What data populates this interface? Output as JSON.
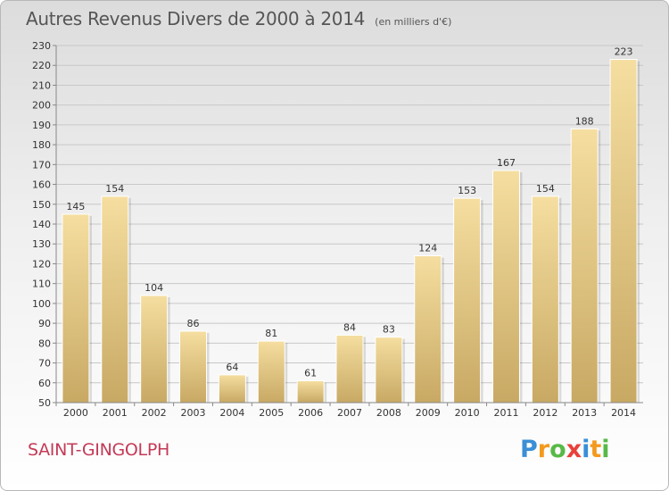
{
  "header": {
    "title": "Autres Revenus Divers de 2000 à 2014",
    "unit": "(en milliers d'€)"
  },
  "footer": {
    "commune": "SAINT-GINGOLPH",
    "logo_letters": [
      "P",
      "r",
      "o",
      "x",
      "i",
      "t",
      "i"
    ],
    "logo_colors": [
      "#3a8fd6",
      "#f39a1e",
      "#58b947",
      "#e8413a",
      "#3a8fd6",
      "#f39a1e",
      "#58b947"
    ]
  },
  "colors": {
    "bar_top": "#f5dea0",
    "bar_bottom": "#c8a964",
    "grid": "#c8c8c8",
    "title": "#555555",
    "commune": "#c43a57"
  },
  "chart_data": {
    "type": "bar",
    "title": "Autres Revenus Divers de 2000 à 2014",
    "subtitle": "(en milliers d'€)",
    "xlabel": "",
    "ylabel": "",
    "categories": [
      "2000",
      "2001",
      "2002",
      "2003",
      "2004",
      "2005",
      "2006",
      "2007",
      "2008",
      "2009",
      "2010",
      "2011",
      "2012",
      "2013",
      "2014"
    ],
    "values": [
      145,
      154,
      104,
      86,
      64,
      81,
      61,
      84,
      83,
      124,
      153,
      167,
      154,
      188,
      223
    ],
    "ylim": [
      50,
      230
    ],
    "yticks": [
      50,
      60,
      70,
      80,
      90,
      100,
      110,
      120,
      130,
      140,
      150,
      160,
      170,
      180,
      190,
      200,
      210,
      220,
      230
    ],
    "grid": true,
    "legend": "none"
  }
}
